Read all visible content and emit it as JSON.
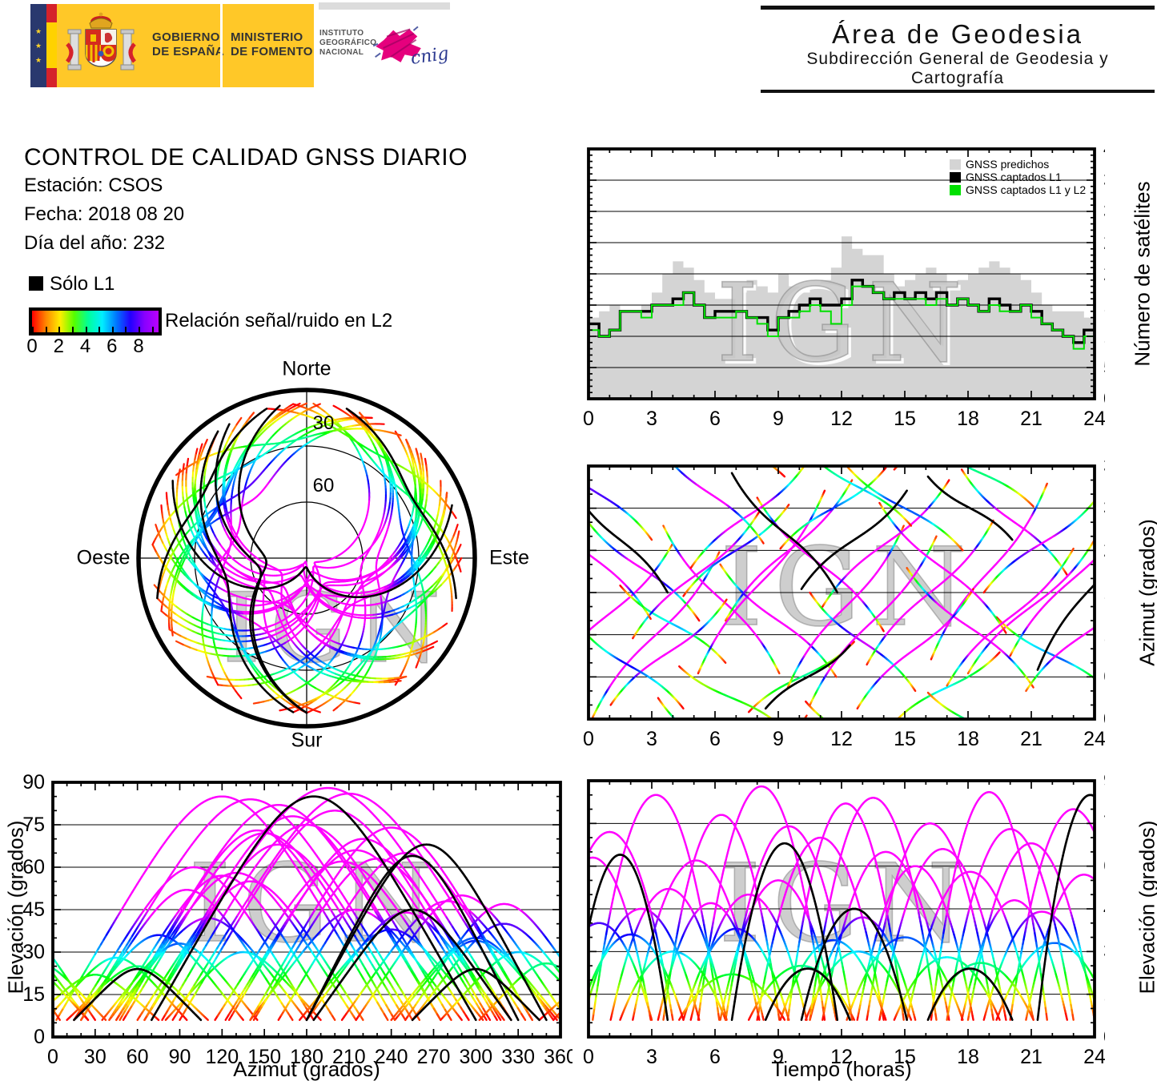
{
  "watermark": "IGN",
  "header": {
    "gobierno_line1": "GOBIERNO",
    "gobierno_line2": "DE ESPAÑA",
    "ministerio_line1": "MINISTERIO",
    "ministerio_line2": "DE FOMENTO",
    "instituto_lines": [
      "INSTITUTO",
      "GEOGRÁFICO",
      "NACIONAL"
    ],
    "cnig": "cnig",
    "area_title": "Área de Geodesia",
    "area_subtitle": "Subdirección General de Geodesia y Cartografía"
  },
  "info": {
    "title": "CONTROL DE CALIDAD GNSS DIARIO",
    "station": "Estación: CSOS",
    "date": "Fecha: 2018 08 20",
    "doy": "Día del año: 232"
  },
  "legend": {
    "l1_only": "Sólo L1",
    "colorbar_label": "Relación señal/ruido en L2",
    "colorbar_ticks": [
      0,
      2,
      4,
      6,
      8
    ],
    "colorbar_minor_step": 1,
    "colorbar_max": 9.5,
    "colorbar_stops": [
      "#ff0000",
      "#ff8800",
      "#ffee00",
      "#55ff00",
      "#00ff99",
      "#00eeff",
      "#0077ff",
      "#2200ff",
      "#8800ff",
      "#bb00ff"
    ]
  },
  "chart_data": [
    {
      "id": "sat_count",
      "type": "area+step",
      "ylabel": "Número de satélites",
      "xlim": [
        0,
        24
      ],
      "ylim": [
        0,
        40
      ],
      "xtick_major": 3,
      "xtick_minor": 1,
      "ytick_major": 5,
      "ytick_minor": 1,
      "x_start": 0,
      "x_step_h": 0.5,
      "legend": [
        {
          "label": "GNSS predichos",
          "color": "#d4d4d4"
        },
        {
          "label": "GNSS captados L1",
          "color": "#000000"
        },
        {
          "label": "GNSS captados L1 y L2",
          "color": "#00e000"
        }
      ],
      "series": {
        "predichos": [
          13,
          14,
          15,
          14,
          14,
          15,
          17,
          20,
          22,
          21,
          19,
          17,
          16,
          16,
          17,
          19,
          18,
          17,
          20,
          18,
          17,
          18,
          19,
          21,
          26,
          24,
          23,
          23,
          20,
          18,
          19,
          20,
          21,
          20,
          18,
          19,
          20,
          21,
          22,
          21,
          20,
          19,
          17,
          15,
          14,
          14,
          14,
          13,
          14
        ],
        "captados_l1": [
          12,
          10,
          11,
          14,
          14,
          14,
          15,
          15,
          16,
          17,
          15,
          13,
          14,
          14,
          14,
          13,
          13,
          11,
          13,
          14,
          15,
          16,
          15,
          15,
          16,
          19,
          18,
          17,
          16,
          17,
          16,
          17,
          16,
          17,
          15,
          16,
          15,
          14,
          16,
          15,
          14,
          15,
          14,
          12,
          11,
          10,
          9,
          11,
          11
        ],
        "captados_l1_y_l2": [
          11,
          10,
          11,
          14,
          14,
          13,
          15,
          15,
          15,
          17,
          15,
          13,
          13,
          13,
          14,
          13,
          12,
          10,
          13,
          13,
          14,
          15,
          14,
          12,
          15,
          18,
          18,
          17,
          16,
          16,
          16,
          16,
          15,
          16,
          15,
          16,
          15,
          14,
          15,
          14,
          14,
          15,
          13,
          12,
          11,
          10,
          8,
          10,
          10
        ]
      }
    },
    {
      "id": "az_time",
      "type": "line",
      "ylabel": "Azimut (grados)",
      "xlim": [
        0,
        24
      ],
      "ylim": [
        0,
        360
      ],
      "xtick_major": 3,
      "xtick_minor": 1,
      "ytick_major": 60,
      "ytick_minor": 20,
      "source": "satellite_passes"
    },
    {
      "id": "el_az",
      "type": "line",
      "xlabel": "Azimut (grados)",
      "ylabel": "Elevación (grados)",
      "xlim": [
        0,
        360
      ],
      "ylim": [
        0,
        90
      ],
      "xtick_major": 30,
      "xtick_minor": 10,
      "ytick_major": 15,
      "ytick_minor": 5,
      "source": "satellite_passes"
    },
    {
      "id": "el_time",
      "type": "line",
      "xlabel": "Tiempo (horas)",
      "ylabel": "Elevación (grados)",
      "xlim": [
        0,
        24
      ],
      "ylim": [
        0,
        90
      ],
      "xtick_major": 3,
      "xtick_minor": 1,
      "ytick_major": 15,
      "ytick_minor": 5,
      "source": "satellite_passes"
    },
    {
      "id": "skyplot",
      "type": "polar",
      "north": "Norte",
      "south": "Sur",
      "east": "Este",
      "west": "Oeste",
      "elevation_rings": [
        30,
        60
      ],
      "ring_labels": [
        "30",
        "60"
      ],
      "source": "satellite_passes"
    }
  ],
  "satellite_passes": {
    "format": [
      "t_center_h",
      "duration_h",
      "el_max_deg",
      "az_center_deg",
      "az_span_deg",
      "l1_only"
    ],
    "snr_color_scale": {
      "min": 0,
      "max": 9.5,
      "over_color": "#ff00ff"
    },
    "list": [
      [
        1.0,
        6,
        72,
        150,
        200,
        0
      ],
      [
        2.5,
        5.5,
        45,
        215,
        -150,
        0
      ],
      [
        3.2,
        6,
        85,
        120,
        235,
        0
      ],
      [
        4.0,
        5,
        30,
        135,
        -110,
        0
      ],
      [
        5.1,
        6,
        62,
        205,
        180,
        0
      ],
      [
        6.3,
        5.5,
        78,
        170,
        -210,
        0
      ],
      [
        7.0,
        5,
        38,
        240,
        130,
        0
      ],
      [
        8.2,
        6,
        88,
        195,
        260,
        0
      ],
      [
        9.0,
        5.5,
        55,
        140,
        -160,
        0
      ],
      [
        10.1,
        5,
        25,
        60,
        100,
        0
      ],
      [
        11.0,
        6,
        70,
        220,
        -190,
        0
      ],
      [
        12.2,
        5.5,
        82,
        160,
        230,
        0
      ],
      [
        13.0,
        5,
        42,
        110,
        -140,
        0
      ],
      [
        14.1,
        6,
        65,
        250,
        180,
        0
      ],
      [
        15.0,
        5.5,
        35,
        300,
        -120,
        0
      ],
      [
        16.2,
        6,
        75,
        180,
        205,
        0
      ],
      [
        17.0,
        5,
        28,
        45,
        100,
        0
      ],
      [
        18.1,
        6,
        58,
        130,
        -170,
        0
      ],
      [
        19.0,
        5.5,
        86,
        210,
        250,
        0
      ],
      [
        20.2,
        5,
        48,
        280,
        -150,
        0
      ],
      [
        21.0,
        6,
        68,
        160,
        190,
        0
      ],
      [
        22.1,
        5.5,
        33,
        90,
        -110,
        0
      ],
      [
        23.0,
        6,
        80,
        200,
        220,
        0
      ],
      [
        0.5,
        5,
        40,
        320,
        -130,
        0
      ],
      [
        3.8,
        5.5,
        52,
        95,
        150,
        0
      ],
      [
        6.8,
        5,
        22,
        30,
        -90,
        0
      ],
      [
        9.5,
        6,
        74,
        240,
        200,
        0
      ],
      [
        12.8,
        5,
        30,
        330,
        -110,
        0
      ],
      [
        15.5,
        5.5,
        60,
        100,
        170,
        0
      ],
      [
        18.6,
        5,
        26,
        350,
        -95,
        0
      ],
      [
        21.5,
        5.5,
        44,
        250,
        140,
        0
      ],
      [
        2.0,
        5,
        36,
        75,
        -120,
        0
      ],
      [
        13.5,
        6,
        84,
        140,
        240,
        0
      ],
      [
        7.6,
        5.5,
        50,
        290,
        150,
        0
      ],
      [
        16.8,
        6,
        66,
        215,
        -185,
        0
      ],
      [
        23.5,
        5.5,
        57,
        120,
        160,
        0
      ],
      [
        5.8,
        5,
        47,
        320,
        -140,
        0
      ],
      [
        11.6,
        5,
        34,
        300,
        115,
        0
      ],
      [
        20.0,
        6,
        73,
        145,
        195,
        0
      ],
      [
        0.2,
        5.5,
        63,
        230,
        -175,
        0
      ],
      [
        1.5,
        4.5,
        64,
        255,
        -150,
        1
      ],
      [
        9.3,
        5,
        68,
        265,
        -170,
        1
      ],
      [
        10.4,
        4,
        24,
        60,
        90,
        1
      ],
      [
        18.1,
        4,
        24,
        300,
        -90,
        1
      ],
      [
        12.6,
        5,
        45,
        255,
        140,
        1
      ],
      [
        23.8,
        5,
        85,
        185,
        230,
        1
      ]
    ]
  }
}
